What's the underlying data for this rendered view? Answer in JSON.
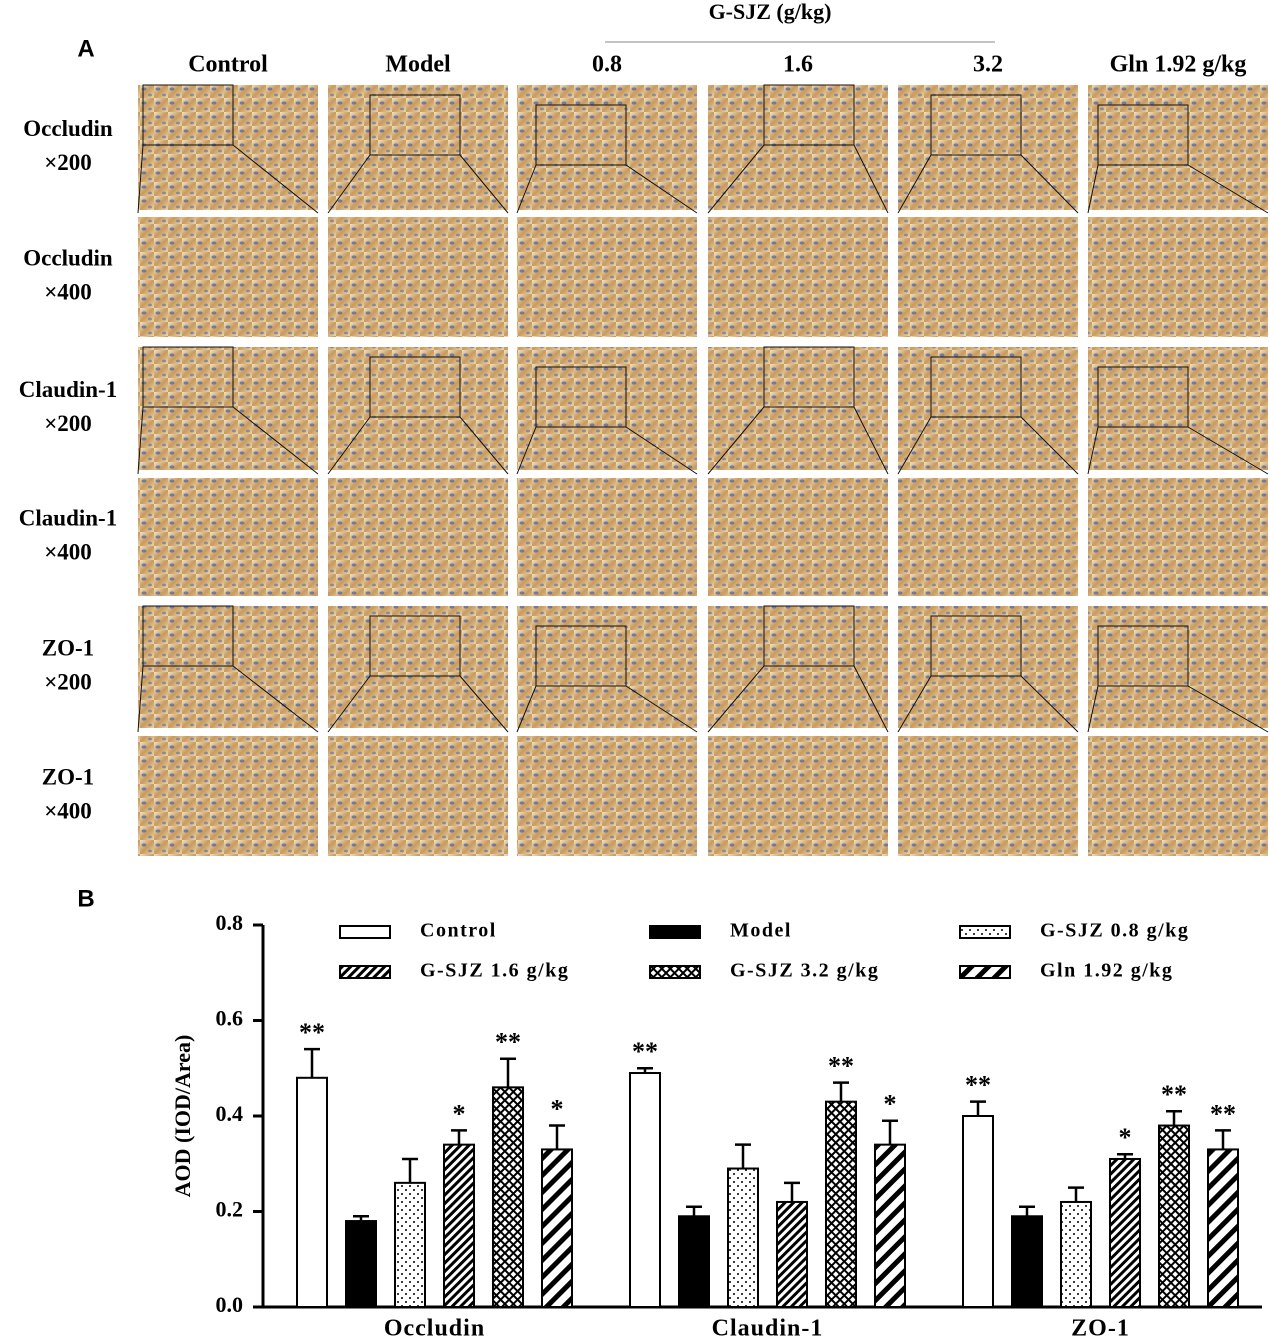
{
  "panel_a": {
    "label": "A",
    "group_header": "G-SJZ  (g/kg)",
    "columns": [
      "Control",
      "Model",
      "0.8",
      "1.6",
      "3.2",
      "Gln 1.92 g/kg"
    ],
    "rows": [
      [
        "Occludin",
        "×200"
      ],
      [
        "Occludin",
        "×400"
      ],
      [
        "Claudin-1",
        "×200"
      ],
      [
        "Claudin-1",
        "×400"
      ],
      [
        "ZO-1",
        "×200"
      ],
      [
        "ZO-1",
        "×400"
      ]
    ]
  },
  "panel_b_label": "B",
  "chart_data": {
    "type": "bar",
    "y_label": "AOD (IOD/Area)",
    "categories": [
      "Occludin",
      "Claudin-1",
      "ZO-1"
    ],
    "ylim": [
      0,
      0.8
    ],
    "yticks": [
      {
        "value": 0,
        "label": "0.0"
      },
      0.2,
      0.4,
      0.6,
      0.8
    ],
    "series": [
      {
        "name": "Control",
        "color": "#ffffff",
        "pattern": "none",
        "values": [
          0.48,
          0.49,
          0.4
        ],
        "errors": [
          0.06,
          0.01,
          0.03
        ],
        "significance": [
          "**",
          "**",
          "**"
        ]
      },
      {
        "name": "Model",
        "color": "#000000",
        "pattern": "solid",
        "values": [
          0.18,
          0.19,
          0.19
        ],
        "errors": [
          0.01,
          0.02,
          0.02
        ],
        "significance": [
          null,
          null,
          null
        ]
      },
      {
        "name": "G-SJZ 0.8 g/kg",
        "color": "#ffffff",
        "pattern": "dots",
        "values": [
          0.26,
          0.29,
          0.22
        ],
        "errors": [
          0.05,
          0.05,
          0.03
        ],
        "significance": [
          null,
          null,
          null
        ]
      },
      {
        "name": "G-SJZ 1.6 g/kg",
        "color": "#ffffff",
        "pattern": "dense-diagonal",
        "values": [
          0.34,
          0.22,
          0.31
        ],
        "errors": [
          0.03,
          0.04,
          0.01
        ],
        "significance": [
          "*",
          null,
          "*"
        ]
      },
      {
        "name": "G-SJZ 3.2 g/kg",
        "color": "#ffffff",
        "pattern": "crosshatch",
        "values": [
          0.46,
          0.43,
          0.38
        ],
        "errors": [
          0.06,
          0.04,
          0.03
        ],
        "significance": [
          "**",
          "**",
          "**"
        ]
      },
      {
        "name": "Gln 1.92 g/kg",
        "color": "#ffffff",
        "pattern": "diagonal",
        "values": [
          0.33,
          0.34,
          0.33
        ],
        "errors": [
          0.05,
          0.05,
          0.04
        ],
        "significance": [
          "*",
          "*",
          "**"
        ]
      }
    ]
  }
}
